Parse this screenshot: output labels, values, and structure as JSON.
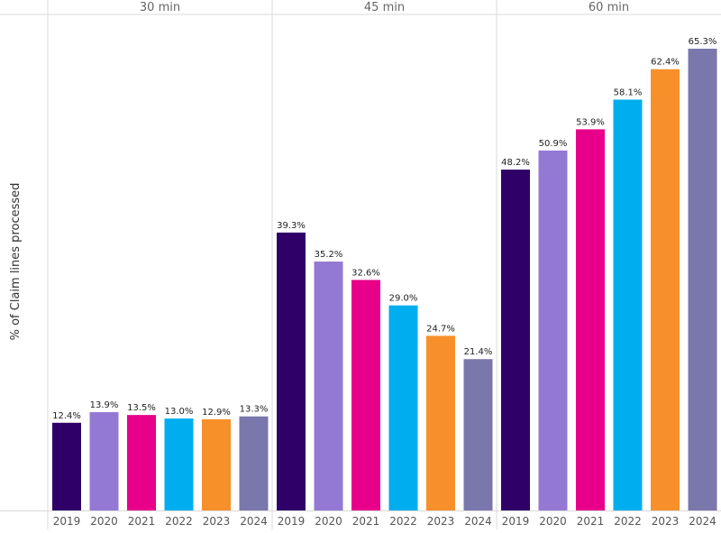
{
  "chart_data": {
    "type": "bar",
    "ylabel": "% of Claim lines processed",
    "ylim": [
      0,
      68
    ],
    "grid": false,
    "panels": [
      {
        "label": "30 min",
        "categories": [
          "2019",
          "2020",
          "2021",
          "2022",
          "2023",
          "2024"
        ],
        "values": [
          12.4,
          13.9,
          13.5,
          13.0,
          12.9,
          13.3
        ],
        "labels": [
          "12.4%",
          "13.9%",
          "13.5%",
          "13.0%",
          "12.9%",
          "13.3%"
        ]
      },
      {
        "label": "45 min",
        "categories": [
          "2019",
          "2020",
          "2021",
          "2022",
          "2023",
          "2024"
        ],
        "values": [
          39.3,
          35.2,
          32.6,
          29.0,
          24.7,
          21.4
        ],
        "labels": [
          "39.3%",
          "35.2%",
          "32.6%",
          "29.0%",
          "24.7%",
          "21.4%"
        ]
      },
      {
        "label": "60 min",
        "categories": [
          "2019",
          "2020",
          "2021",
          "2022",
          "2023",
          "2024"
        ],
        "values": [
          48.2,
          50.9,
          53.9,
          58.1,
          62.4,
          65.3
        ],
        "labels": [
          "48.2%",
          "50.9%",
          "53.9%",
          "58.1%",
          "62.4%",
          "65.3%"
        ]
      }
    ],
    "colors": {
      "2019": "#2e0068",
      "2020": "#9479d4",
      "2021": "#e8008a",
      "2022": "#00aeef",
      "2023": "#f7902a",
      "2024": "#7a77ad"
    }
  }
}
